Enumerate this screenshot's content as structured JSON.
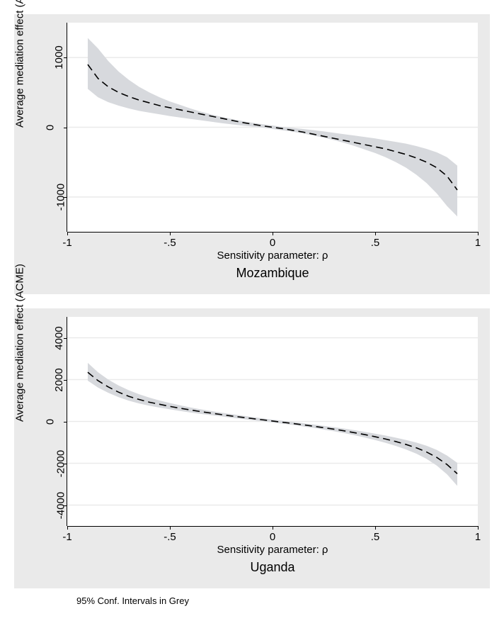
{
  "figure": {
    "background_color": "#eaeaea",
    "plot_background_color": "#ffffff",
    "grid_color": "#eaeaea",
    "line_color": "#000000",
    "ci_color": "#d7d9dd",
    "footnote": "95% Conf. Intervals in Grey",
    "footnote_fontsize": 13,
    "axis_label_fontsize": 15,
    "tick_fontsize": 15,
    "title_fontsize": 18,
    "line_dash": "10,6",
    "line_width": 1.6
  },
  "panels": [
    {
      "title": "Mozambique",
      "xlabel": "Sensitivity parameter: ρ",
      "ylabel": "Average mediation effect (ACME)",
      "xlim": [
        -1,
        1
      ],
      "ylim": [
        -1500,
        1500
      ],
      "xticks": [
        -1,
        -0.5,
        0,
        0.5,
        1
      ],
      "xtick_labels": [
        "-1",
        "-.5",
        "0",
        ".5",
        "1"
      ],
      "yticks": [
        -1000,
        0,
        1000
      ],
      "ytick_labels": [
        "-1000",
        "0",
        "1000"
      ],
      "x": [
        -0.9,
        -0.85,
        -0.8,
        -0.75,
        -0.7,
        -0.65,
        -0.6,
        -0.55,
        -0.5,
        -0.45,
        -0.4,
        -0.35,
        -0.3,
        -0.25,
        -0.2,
        -0.15,
        -0.1,
        -0.05,
        0,
        0.05,
        0.1,
        0.15,
        0.2,
        0.25,
        0.3,
        0.35,
        0.4,
        0.45,
        0.5,
        0.55,
        0.6,
        0.65,
        0.7,
        0.75,
        0.8,
        0.85,
        0.9
      ],
      "y": [
        900,
        700,
        580,
        500,
        440,
        390,
        350,
        310,
        280,
        250,
        220,
        190,
        160,
        130,
        100,
        70,
        45,
        20,
        0,
        -20,
        -45,
        -70,
        -100,
        -130,
        -160,
        -190,
        -220,
        -250,
        -280,
        -310,
        -350,
        -390,
        -440,
        -500,
        -580,
        -700,
        -900
      ],
      "ci_lo": [
        550,
        430,
        360,
        310,
        270,
        235,
        210,
        185,
        160,
        140,
        120,
        100,
        80,
        60,
        42,
        25,
        10,
        -5,
        -25,
        -45,
        -65,
        -90,
        -120,
        -150,
        -185,
        -225,
        -270,
        -320,
        -370,
        -430,
        -500,
        -580,
        -680,
        -800,
        -950,
        -1130,
        -1280
      ],
      "ci_hi": [
        1280,
        1130,
        950,
        800,
        680,
        580,
        500,
        430,
        370,
        320,
        270,
        225,
        185,
        150,
        120,
        90,
        65,
        45,
        25,
        5,
        -10,
        -25,
        -42,
        -60,
        -80,
        -100,
        -120,
        -140,
        -160,
        -185,
        -210,
        -235,
        -270,
        -310,
        -360,
        -430,
        -550
      ]
    },
    {
      "title": "Uganda",
      "xlabel": "Sensitivity parameter: ρ",
      "ylabel": "Average mediation effect (ACME)",
      "xlim": [
        -1,
        1
      ],
      "ylim": [
        -5000,
        5000
      ],
      "xticks": [
        -1,
        -0.5,
        0,
        0.5,
        1
      ],
      "xtick_labels": [
        "-1",
        "-.5",
        "0",
        ".5",
        "1"
      ],
      "yticks": [
        -4000,
        -2000,
        0,
        2000,
        4000
      ],
      "ytick_labels": [
        "-4000",
        "-2000",
        "0",
        "2000",
        "4000"
      ],
      "x": [
        -0.9,
        -0.85,
        -0.8,
        -0.75,
        -0.7,
        -0.65,
        -0.6,
        -0.55,
        -0.5,
        -0.45,
        -0.4,
        -0.35,
        -0.3,
        -0.25,
        -0.2,
        -0.15,
        -0.1,
        -0.05,
        0,
        0.05,
        0.1,
        0.15,
        0.2,
        0.25,
        0.3,
        0.35,
        0.4,
        0.45,
        0.5,
        0.55,
        0.6,
        0.65,
        0.7,
        0.75,
        0.8,
        0.85,
        0.9
      ],
      "y": [
        2350,
        1950,
        1650,
        1400,
        1200,
        1050,
        920,
        820,
        720,
        630,
        550,
        470,
        400,
        330,
        260,
        200,
        140,
        80,
        20,
        -40,
        -100,
        -160,
        -230,
        -300,
        -370,
        -450,
        -540,
        -630,
        -730,
        -840,
        -960,
        -1100,
        -1260,
        -1460,
        -1720,
        -2060,
        -2500
      ],
      "ci_lo": [
        1950,
        1620,
        1370,
        1160,
        990,
        860,
        750,
        660,
        580,
        500,
        430,
        360,
        300,
        240,
        180,
        120,
        65,
        10,
        -50,
        -110,
        -170,
        -240,
        -310,
        -390,
        -470,
        -560,
        -660,
        -770,
        -890,
        -1020,
        -1170,
        -1340,
        -1540,
        -1790,
        -2110,
        -2530,
        -3080
      ],
      "ci_hi": [
        2800,
        2350,
        2000,
        1720,
        1490,
        1300,
        1140,
        1000,
        880,
        770,
        670,
        580,
        500,
        420,
        350,
        280,
        215,
        150,
        90,
        30,
        -30,
        -85,
        -145,
        -210,
        -275,
        -345,
        -420,
        -500,
        -585,
        -675,
        -775,
        -885,
        -1010,
        -1160,
        -1360,
        -1630,
        -1980
      ]
    }
  ]
}
